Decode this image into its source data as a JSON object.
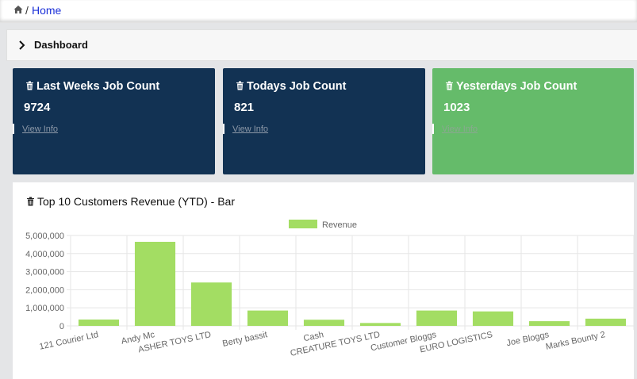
{
  "breadcrumb": {
    "separator": "/",
    "home_label": "Home",
    "home_icon": "home-icon"
  },
  "section": {
    "title": "Dashboard",
    "toggle_icon": "chevron-right-icon"
  },
  "cards": [
    {
      "title": "Last Weeks Job Count",
      "value": "9724",
      "link": "View Info",
      "color": "#123253",
      "icon": "trash-icon"
    },
    {
      "title": "Todays Job Count",
      "value": "821",
      "link": "View Info",
      "color": "#123253",
      "icon": "trash-icon"
    },
    {
      "title": "Yesterdays Job Count",
      "value": "1023",
      "link": "View Info",
      "color": "#65bb6a",
      "icon": "trash-icon"
    }
  ],
  "chart_panel": {
    "title": "Top 10 Customers Revenue (YTD) - Bar",
    "icon": "trash-icon"
  },
  "chart_data": {
    "type": "bar",
    "title": "",
    "xlabel": "",
    "ylabel": "",
    "categories": [
      "121 Courier Ltd",
      "Andy Mc",
      "ASHER TOYS LTD",
      "Berty bassit",
      "Cash",
      "CREATURE TOYS LTD",
      "Customer Bloggs",
      "EURO LOGISTICS",
      "Joe Bloggs",
      "Marks Bounty 2"
    ],
    "series": [
      {
        "name": "Revenue",
        "values": [
          350000,
          4650000,
          2400000,
          850000,
          340000,
          160000,
          850000,
          800000,
          260000,
          400000
        ],
        "color": "#a3dd63"
      }
    ],
    "ylim": [
      0,
      5000000
    ],
    "yticks": [
      "0",
      "1,000,000",
      "2,000,000",
      "3,000,000",
      "4,000,000",
      "5,000,000"
    ],
    "grid": true,
    "legend": "top-center"
  }
}
